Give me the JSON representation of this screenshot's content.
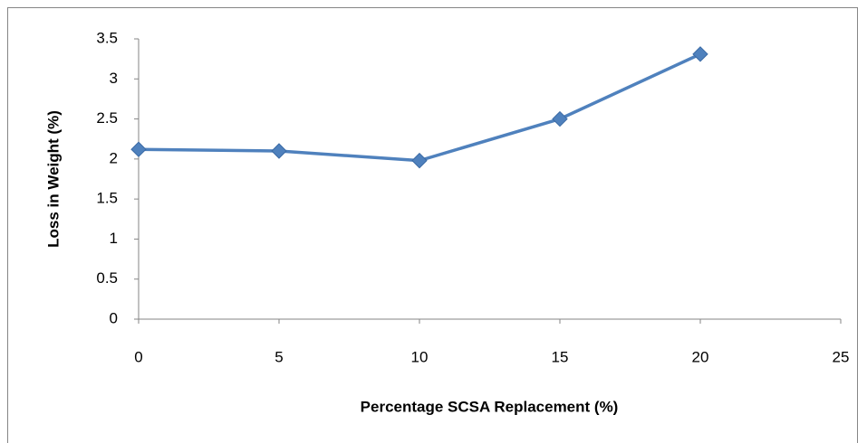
{
  "chart_data": {
    "type": "line",
    "x_label": "Percentage SCSA Replacement (%)",
    "y_label": "Loss in Weight (%)",
    "x": [
      0,
      5,
      10,
      15,
      20
    ],
    "series": [
      {
        "color": "#4f81bd",
        "values": [
          2.12,
          2.1,
          1.98,
          2.5,
          3.31
        ]
      }
    ],
    "xlim": [
      0,
      25
    ],
    "xticks": [
      0,
      5,
      10,
      15,
      20,
      25
    ],
    "ylim": [
      0,
      3.5
    ],
    "yticks": [
      0,
      0.5,
      1,
      1.5,
      2,
      2.5,
      3,
      3.5
    ],
    "grid": false
  }
}
